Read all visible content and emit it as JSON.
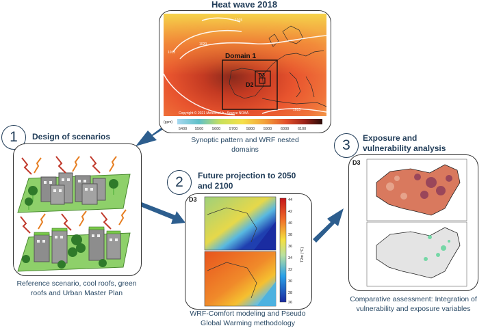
{
  "heatwave": {
    "title": "Heat wave 2018",
    "caption": "Synoptic pattern and WRF nested domains",
    "domain1": "Domain 1",
    "d2": "D2",
    "d3": "D3",
    "copyright": "Copyright © 2021 Meteociel.fr - Source NOAA",
    "unit": "(gpm)",
    "isolines": [
      "1015",
      "1020",
      "1015",
      "1015"
    ],
    "scale_ticks": [
      "5400",
      "5500",
      "5600",
      "5700",
      "5800",
      "5900",
      "6000",
      "6100"
    ]
  },
  "step1": {
    "number": "1",
    "title": "Design of scenarios",
    "caption": "Reference scenario, cool roofs, green roofs and Urban Master Plan"
  },
  "step2": {
    "number": "2",
    "title": "Future projection to 2050 and 2100",
    "domain": "D3",
    "colorbar_ticks": [
      "44",
      "42",
      "40",
      "38",
      "36",
      "34",
      "32",
      "30",
      "28",
      "26"
    ],
    "colorbar_label": "T2m (°C)",
    "caption": "WRF-Comfort modeling and Pseudo Global Warming methodology"
  },
  "step3": {
    "number": "3",
    "title": "Exposure and vulnerability analysis",
    "domain": "D3",
    "caption": "Comparative assessment: Integration of vulnerability and exposure variables"
  },
  "colors": {
    "title_text": "#1f3b57",
    "arrow": "#2d5e8e",
    "grass": "#8ed06a",
    "building": "#8d8d8d"
  }
}
